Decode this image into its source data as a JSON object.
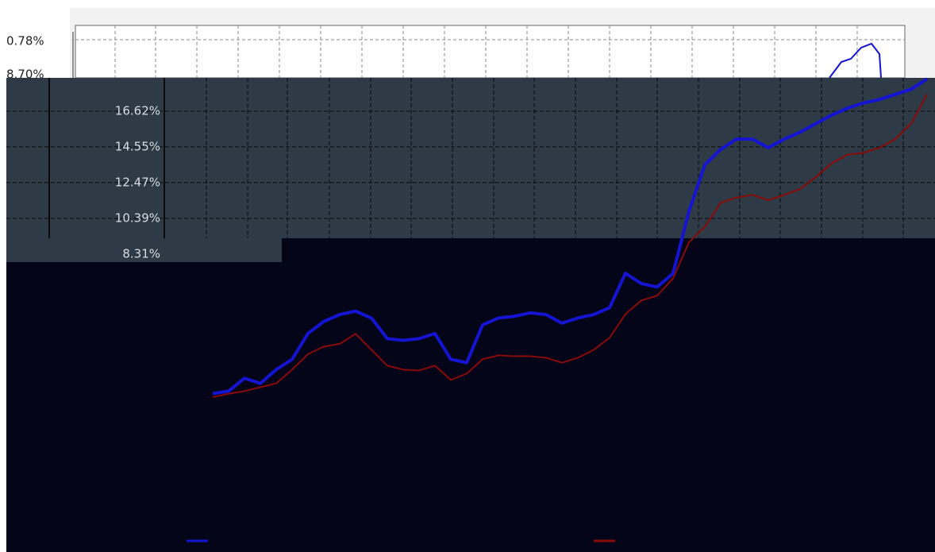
{
  "top_panel": {
    "labels": [
      "0.78%",
      "8.70%"
    ]
  },
  "chart_data": {
    "type": "line",
    "ylim": [
      -9.0,
      18.56
    ],
    "yticks": [
      {
        "value": 16.62,
        "label": "16.62%"
      },
      {
        "value": 14.55,
        "label": "14.55%"
      },
      {
        "value": 12.47,
        "label": "12.47%"
      },
      {
        "value": 10.39,
        "label": "10.39%"
      },
      {
        "value": 8.31,
        "label": "8.31%"
      }
    ],
    "grid": true,
    "series": [
      {
        "color": "#1414d2",
        "values": [
          0.21,
          0.35,
          1.1,
          0.8,
          1.6,
          2.2,
          3.7,
          4.4,
          4.8,
          5.0,
          4.6,
          3.4,
          3.3,
          3.4,
          3.7,
          2.2,
          2.0,
          4.2,
          4.6,
          4.7,
          4.9,
          4.8,
          4.3,
          4.6,
          4.8,
          5.2,
          7.2,
          6.6,
          6.4,
          7.2,
          10.8,
          13.5,
          14.4,
          15.0,
          15.0,
          14.5,
          15.0,
          15.4,
          15.9,
          16.4,
          16.8,
          17.1,
          17.3,
          17.6,
          17.9,
          18.5
        ]
      },
      {
        "color": "#8a0a0a",
        "values": [
          0.0,
          0.2,
          0.35,
          0.58,
          0.8,
          1.6,
          2.5,
          2.94,
          3.1,
          3.68,
          2.75,
          1.83,
          1.6,
          1.55,
          1.83,
          1.0,
          1.37,
          2.2,
          2.43,
          2.38,
          2.38,
          2.29,
          2.0,
          2.29,
          2.75,
          3.45,
          4.83,
          5.62,
          5.9,
          6.9,
          9.0,
          9.9,
          11.3,
          11.6,
          11.76,
          11.44,
          11.76,
          12.1,
          12.8,
          13.6,
          14.1,
          14.2,
          14.5,
          15.0,
          15.9,
          17.6
        ]
      }
    ]
  }
}
